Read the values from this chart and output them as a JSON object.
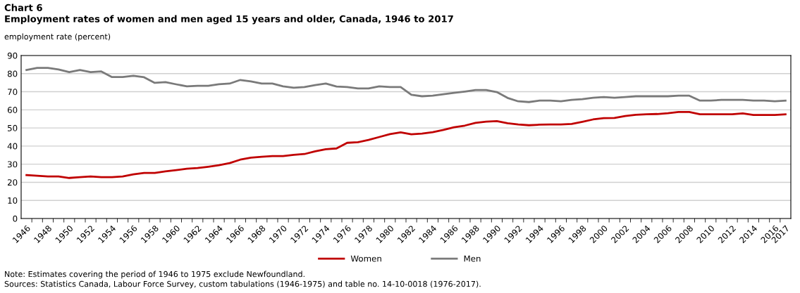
{
  "chart_data": {
    "type": "line",
    "title": "Chart 6",
    "subtitle": "Employment rates of women and men aged 15 years and older, Canada, 1946 to 2017",
    "ylabel": "employment rate (percent)",
    "categories": [
      "1946",
      null,
      "1948",
      null,
      "1950",
      null,
      "1952",
      null,
      "1954",
      null,
      "1956",
      null,
      "1958",
      null,
      "1960",
      null,
      "1962",
      null,
      "1964",
      null,
      "1966",
      null,
      "1968",
      null,
      "1970",
      null,
      "1972",
      null,
      "1974",
      null,
      "1976",
      null,
      "1978",
      null,
      "1980",
      null,
      "1982",
      null,
      "1984",
      null,
      "1986",
      null,
      "1988",
      null,
      "1990",
      null,
      "1992",
      null,
      "1994",
      null,
      "1996",
      null,
      "1998",
      null,
      "2000",
      null,
      "2002",
      null,
      "2004",
      null,
      "2006",
      null,
      "2008",
      null,
      "2010",
      null,
      "2012",
      null,
      "2014",
      null,
      "2016",
      "2017"
    ],
    "series": [
      {
        "name": "Women",
        "color": "#c00000",
        "values": [
          24,
          23.6,
          23.2,
          23.2,
          22.4,
          22.8,
          23.2,
          22.8,
          22.8,
          23.2,
          24.4,
          25.2,
          25.2,
          26,
          26.7,
          27.5,
          27.9,
          28.6,
          29.4,
          30.6,
          32.5,
          33.6,
          34.1,
          34.5,
          34.5,
          35.2,
          35.6,
          37.1,
          38.3,
          38.7,
          41.8,
          42.1,
          43.4,
          45,
          46.6,
          47.6,
          46.5,
          46.9,
          47.7,
          48.9,
          50.4,
          51.3,
          52.8,
          53.5,
          53.8,
          52.6,
          51.9,
          51.5,
          51.8,
          51.9,
          51.9,
          52.2,
          53.4,
          54.7,
          55.4,
          55.5,
          56.6,
          57.3,
          57.6,
          57.7,
          58.1,
          58.8,
          58.8,
          57.6,
          57.6,
          57.6,
          57.6,
          58,
          57.2,
          57.2,
          57.2,
          57.5
        ]
      },
      {
        "name": "Men",
        "color": "#7a7a7a",
        "values": [
          82,
          83.2,
          83.2,
          82.3,
          80.8,
          82,
          80.8,
          81.2,
          78.1,
          78.1,
          78.8,
          78,
          74.9,
          75.3,
          74.1,
          73,
          73.3,
          73.3,
          74.1,
          74.5,
          76.5,
          75.7,
          74.5,
          74.5,
          73,
          72.2,
          72.6,
          73.7,
          74.5,
          72.9,
          72.6,
          71.8,
          71.8,
          73,
          72.6,
          72.6,
          68.3,
          67.5,
          67.8,
          68.6,
          69.4,
          70.1,
          70.9,
          70.9,
          69.8,
          66.6,
          64.7,
          64.3,
          65.1,
          65.1,
          64.7,
          65.5,
          65.9,
          66.7,
          67.1,
          66.7,
          67.1,
          67.5,
          67.5,
          67.5,
          67.5,
          67.8,
          67.8,
          65.1,
          65.1,
          65.5,
          65.5,
          65.5,
          65.1,
          65.1,
          64.7,
          65.1
        ]
      }
    ],
    "ylim": [
      0,
      90
    ],
    "yticks": [
      0,
      10,
      20,
      30,
      40,
      50,
      60,
      70,
      80,
      90
    ],
    "grid": "y",
    "legend": "bottom",
    "marker": "none",
    "line_style": "solid",
    "annotations": [
      "Note: Estimates covering the period of 1946 to 1975 exclude Newfoundland.",
      "Sources: Statistics Canada, Labour Force Survey, custom tabulations (1946-1975) and table no. 14-10-0018 (1976-2017)."
    ]
  }
}
